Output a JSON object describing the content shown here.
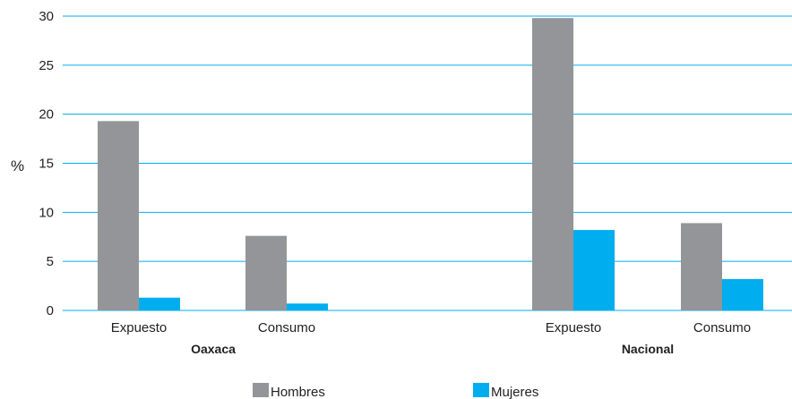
{
  "chart_data": {
    "type": "bar",
    "ylabel": "%",
    "ylim": [
      0,
      30
    ],
    "yticks": [
      0,
      5,
      10,
      15,
      20,
      25,
      30
    ],
    "grid": true,
    "legend_position": "bottom",
    "groups": [
      {
        "label": "Oaxaca",
        "categories": [
          "Expuesto",
          "Consumo"
        ]
      },
      {
        "label": "Nacional",
        "categories": [
          "Expuesto",
          "Consumo"
        ]
      }
    ],
    "series": [
      {
        "name": "Hombres",
        "color": "#939598",
        "values": [
          19.3,
          7.6,
          29.8,
          8.9
        ]
      },
      {
        "name": "Mujeres",
        "color": "#00aeef",
        "values": [
          1.3,
          0.7,
          8.2,
          3.2
        ]
      }
    ],
    "gridline_color": "#00aeef"
  }
}
